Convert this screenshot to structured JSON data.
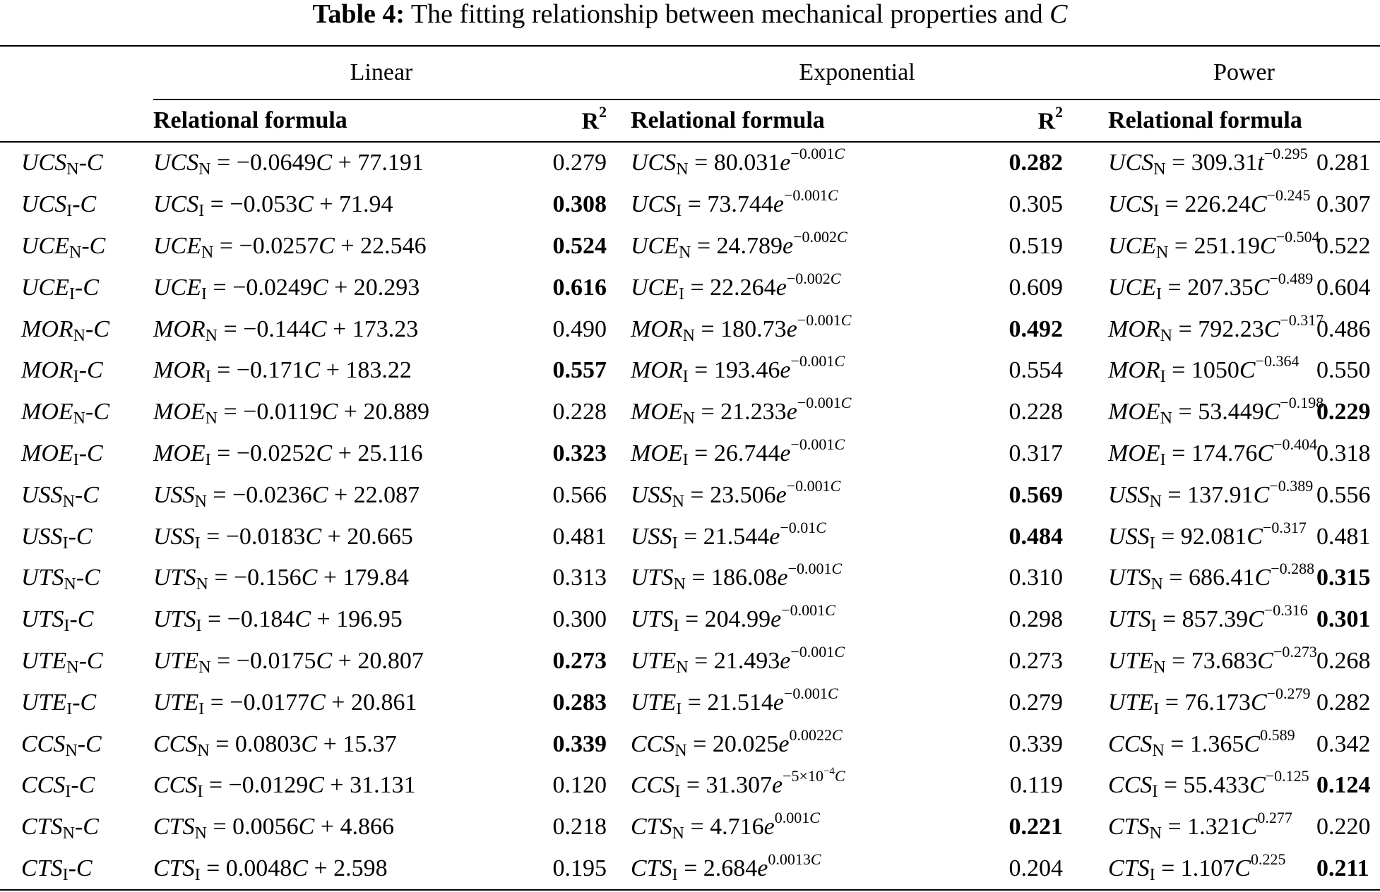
{
  "caption": {
    "label": "Table 4:",
    "text": "The fitting relationship between mechanical properties and",
    "var": "C"
  },
  "groups": [
    "Linear",
    "Exponential",
    "Power"
  ],
  "subheaders": {
    "formula": "Relational formula",
    "r2": "R",
    "r2_sup": "2"
  },
  "rows": [
    {
      "name": "UCS",
      "sub": "N",
      "lin": {
        "op": "=",
        "val": "−0.0649",
        "rest": "+ 77.191",
        "r2": "0.279",
        "bold": false
      },
      "exp": {
        "op": "= 80.031",
        "exp": "−0.001",
        "r2": "0.282",
        "bold": true
      },
      "pow": {
        "op": "= 309.31",
        "base": "t",
        "exp": "−0.295",
        "r2": "0.281",
        "bold": false
      }
    },
    {
      "name": "UCS",
      "sub": "I",
      "lin": {
        "op": "=",
        "val": "−0.053",
        "rest": "+ 71.94",
        "r2": "0.308",
        "bold": true
      },
      "exp": {
        "op": "= 73.744",
        "exp": "−0.001",
        "r2": "0.305",
        "bold": false
      },
      "pow": {
        "op": "= 226.24",
        "base": "C",
        "exp": "−0.245",
        "r2": "0.307",
        "bold": false
      }
    },
    {
      "name": "UCE",
      "sub": "N",
      "lin": {
        "op": "=",
        "val": "−0.0257",
        "rest": "+ 22.546",
        "r2": "0.524",
        "bold": true
      },
      "exp": {
        "op": "= 24.789",
        "exp": "−0.002",
        "r2": "0.519",
        "bold": false
      },
      "pow": {
        "op": "= 251.19",
        "base": "C",
        "exp": "−0.504",
        "r2": "0.522",
        "bold": false
      }
    },
    {
      "name": "UCE",
      "sub": "I",
      "lin": {
        "op": "=",
        "val": "−0.0249",
        "rest": "+ 20.293",
        "r2": "0.616",
        "bold": true
      },
      "exp": {
        "op": "= 22.264",
        "exp": "−0.002",
        "r2": "0.609",
        "bold": false
      },
      "pow": {
        "op": "= 207.35",
        "base": "C",
        "exp": "−0.489",
        "r2": "0.604",
        "bold": false
      }
    },
    {
      "name": "MOR",
      "sub": "N",
      "lin": {
        "op": "=",
        "val": "−0.144",
        "rest": "+ 173.23",
        "r2": "0.490",
        "bold": false
      },
      "exp": {
        "op": "= 180.73",
        "exp": "−0.001",
        "r2": "0.492",
        "bold": true
      },
      "pow": {
        "op": "= 792.23",
        "base": "C",
        "exp": "−0.317",
        "r2": "0.486",
        "bold": false
      }
    },
    {
      "name": "MOR",
      "sub": "I",
      "lin": {
        "op": "=",
        "val": "−0.171",
        "rest": "+ 183.22",
        "r2": "0.557",
        "bold": true
      },
      "exp": {
        "op": "= 193.46",
        "exp": "−0.001",
        "r2": "0.554",
        "bold": false
      },
      "pow": {
        "op": "= 1050",
        "base": "C",
        "exp": "−0.364",
        "r2": "0.550",
        "bold": false
      }
    },
    {
      "name": "MOE",
      "sub": "N",
      "lin": {
        "op": "=",
        "val": "−0.0119",
        "rest": "+ 20.889",
        "r2": "0.228",
        "bold": false
      },
      "exp": {
        "op": "= 21.233",
        "exp": "−0.001",
        "r2": "0.228",
        "bold": false
      },
      "pow": {
        "op": "= 53.449",
        "base": "C",
        "exp": "−0.198",
        "r2": "0.229",
        "bold": true
      }
    },
    {
      "name": "MOE",
      "sub": "I",
      "lin": {
        "op": "=",
        "val": "−0.0252",
        "rest": "+ 25.116",
        "r2": "0.323",
        "bold": true
      },
      "exp": {
        "op": "= 26.744",
        "exp": "−0.001",
        "r2": "0.317",
        "bold": false
      },
      "pow": {
        "op": "= 174.76",
        "base": "C",
        "exp": "−0.404",
        "r2": "0.318",
        "bold": false
      }
    },
    {
      "name": "USS",
      "sub": "N",
      "lin": {
        "op": "=",
        "val": "−0.0236",
        "rest": "+ 22.087",
        "r2": "0.566",
        "bold": false
      },
      "exp": {
        "op": "= 23.506",
        "exp": "−0.001",
        "r2": "0.569",
        "bold": true
      },
      "pow": {
        "op": "= 137.91",
        "base": "C",
        "exp": "−0.389",
        "r2": "0.556",
        "bold": false
      }
    },
    {
      "name": "USS",
      "sub": "I",
      "lin": {
        "op": "=",
        "val": "−0.0183",
        "rest": "+ 20.665",
        "r2": "0.481",
        "bold": false
      },
      "exp": {
        "op": "= 21.544",
        "exp": "−0.01",
        "r2": "0.484",
        "bold": true
      },
      "pow": {
        "op": "= 92.081",
        "base": "C",
        "exp": "−0.317",
        "r2": "0.481",
        "bold": false
      }
    },
    {
      "name": "UTS",
      "sub": "N",
      "lin": {
        "op": "=",
        "val": "−0.156",
        "rest": "+ 179.84",
        "r2": "0.313",
        "bold": false
      },
      "exp": {
        "op": "= 186.08",
        "exp": "−0.001",
        "r2": "0.310",
        "bold": false
      },
      "pow": {
        "op": "= 686.41",
        "base": "C",
        "exp": "−0.288",
        "r2": "0.315",
        "bold": true
      }
    },
    {
      "name": "UTS",
      "sub": "I",
      "lin": {
        "op": "=",
        "val": "−0.184",
        "rest": "+ 196.95",
        "r2": "0.300",
        "bold": false
      },
      "exp": {
        "op": "= 204.99",
        "exp": "−0.001",
        "r2": "0.298",
        "bold": false
      },
      "pow": {
        "op": "= 857.39",
        "base": "C",
        "exp": "−0.316",
        "r2": "0.301",
        "bold": true
      }
    },
    {
      "name": "UTE",
      "sub": "N",
      "lin": {
        "op": "=",
        "val": "−0.0175",
        "rest": "+ 20.807",
        "r2": "0.273",
        "bold": true
      },
      "exp": {
        "op": "= 21.493",
        "exp": "−0.001",
        "r2": "0.273",
        "bold": false
      },
      "pow": {
        "op": "= 73.683",
        "base": "C",
        "exp": "−0.273",
        "r2": "0.268",
        "bold": false
      }
    },
    {
      "name": "UTE",
      "sub": "I",
      "lin": {
        "op": "=",
        "val": "−0.0177",
        "rest": "+ 20.861",
        "r2": "0.283",
        "bold": true
      },
      "exp": {
        "op": "= 21.514",
        "exp": "−0.001",
        "r2": "0.279",
        "bold": false
      },
      "pow": {
        "op": "= 76.173",
        "base": "C",
        "exp": "−0.279",
        "r2": "0.282",
        "bold": false
      }
    },
    {
      "name": "CCS",
      "sub": "N",
      "lin": {
        "op": "=",
        "val": "0.0803",
        "rest": "+ 15.37",
        "r2": "0.339",
        "bold": true
      },
      "exp": {
        "op": "= 20.025",
        "exp": "0.0022",
        "r2": "0.339",
        "bold": false
      },
      "pow": {
        "op": "= 1.365",
        "base": "C",
        "exp": "0.589",
        "r2": "0.342",
        "bold": false
      }
    },
    {
      "name": "CCS",
      "sub": "I",
      "lin": {
        "op": "=",
        "val": "−0.0129",
        "rest": "+ 31.131",
        "r2": "0.120",
        "bold": false
      },
      "exp": {
        "op": "= 31.307",
        "exp": "−5×10",
        "exp_pow": "−4",
        "r2": "0.119",
        "bold": false
      },
      "pow": {
        "op": "= 55.433",
        "base": "C",
        "exp": "−0.125",
        "r2": "0.124",
        "bold": true
      }
    },
    {
      "name": "CTS",
      "sub": "N",
      "lin": {
        "op": "=",
        "val": "0.0056",
        "rest": "+ 4.866",
        "r2": "0.218",
        "bold": false
      },
      "exp": {
        "op": "= 4.716",
        "exp": "0.001",
        "r2": "0.221",
        "bold": true
      },
      "pow": {
        "op": "= 1.321",
        "base": "C",
        "exp": "0.277",
        "r2": "0.220",
        "bold": false
      }
    },
    {
      "name": "CTS",
      "sub": "I",
      "lin": {
        "op": "=",
        "val": "0.0048",
        "rest": "+ 2.598",
        "r2": "0.195",
        "bold": false
      },
      "exp": {
        "op": "= 2.684",
        "exp": "0.0013",
        "r2": "0.204",
        "bold": false
      },
      "pow": {
        "op": "= 1.107",
        "base": "C",
        "exp": "0.225",
        "r2": "0.211",
        "bold": true
      }
    }
  ]
}
